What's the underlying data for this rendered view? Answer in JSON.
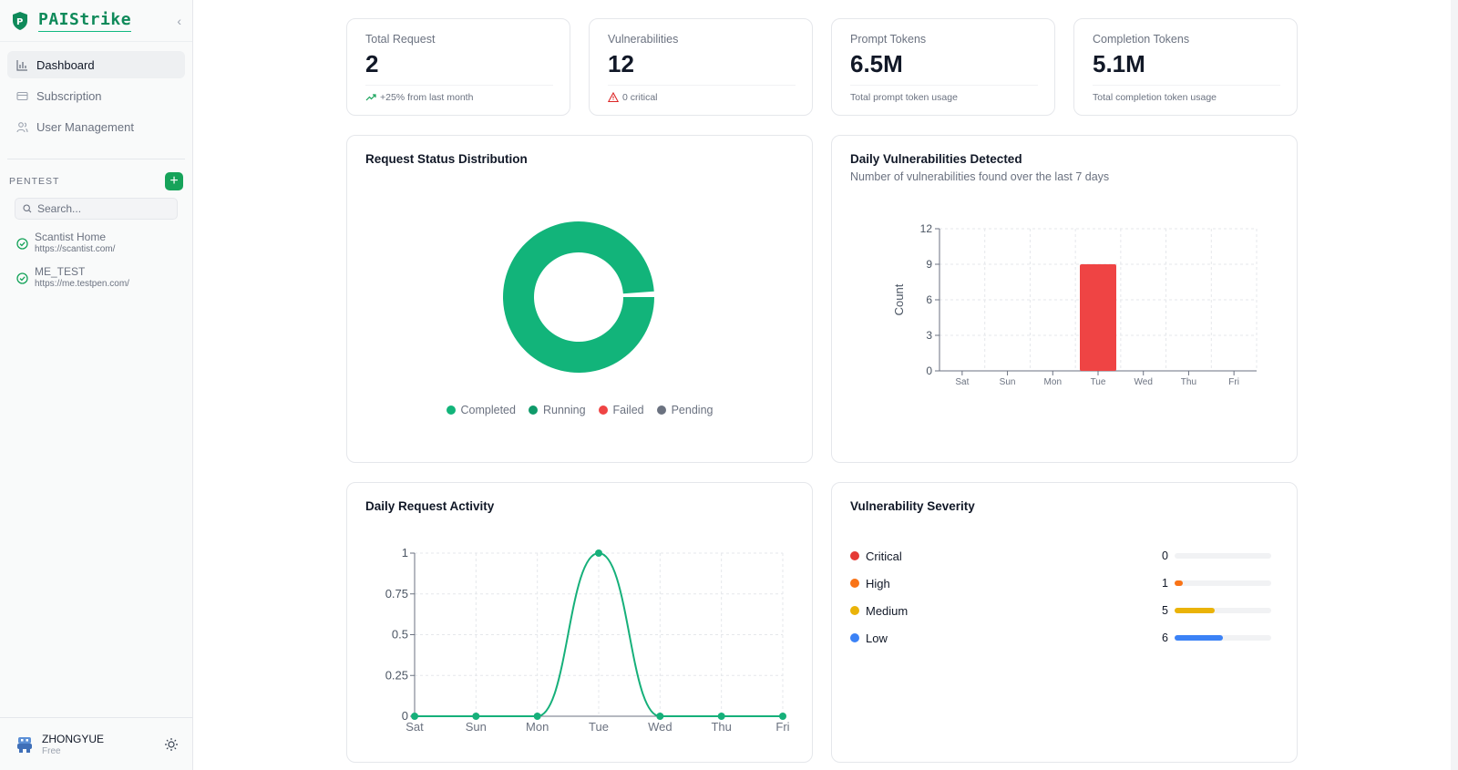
{
  "brand": {
    "name": "PAIStrike"
  },
  "nav": {
    "items": [
      {
        "label": "Dashboard",
        "active": true,
        "icon": "bar-chart-icon"
      },
      {
        "label": "Subscription",
        "active": false,
        "icon": "card-icon"
      },
      {
        "label": "User Management",
        "active": false,
        "icon": "users-icon"
      }
    ]
  },
  "pentest": {
    "section_label": "PENTEST",
    "search_placeholder": "Search...",
    "targets": [
      {
        "name": "Scantist Home",
        "url": "https://scantist.com/"
      },
      {
        "name": "ME_TEST",
        "url": "https://me.testpen.com/"
      }
    ]
  },
  "user": {
    "name": "ZHONGYUE",
    "plan": "Free"
  },
  "stats": [
    {
      "label": "Total Request",
      "value": "2",
      "note": "+25% from last month",
      "note_icon": "trending-up-icon"
    },
    {
      "label": "Vulnerabilities",
      "value": "12",
      "note": "0 critical",
      "note_icon": "warning-triangle-icon"
    },
    {
      "label": "Prompt Tokens",
      "value": "6.5M",
      "note": "Total prompt token usage"
    },
    {
      "label": "Completion Tokens",
      "value": "5.1M",
      "note": "Total completion token usage"
    }
  ],
  "colors": {
    "completed": "#12b47a",
    "running": "#0f9a6a",
    "failed": "#ef4444",
    "pending": "#6b7280",
    "critical": "#e53935",
    "high": "#f97316",
    "medium": "#eab308",
    "low": "#3b82f6",
    "bar": "#ef4444",
    "line": "#16b07a"
  },
  "request_status": {
    "title": "Request Status Distribution",
    "legend": [
      "Completed",
      "Running",
      "Failed",
      "Pending"
    ]
  },
  "daily_vulns": {
    "title": "Daily Vulnerabilities Detected",
    "subtitle": "Number of vulnerabilities found over the last 7 days"
  },
  "daily_requests": {
    "title": "Daily Request Activity"
  },
  "severity": {
    "title": "Vulnerability Severity",
    "max": 12,
    "items": [
      {
        "name": "Critical",
        "count": "0",
        "value": 0
      },
      {
        "name": "High",
        "count": "1",
        "value": 1
      },
      {
        "name": "Medium",
        "count": "5",
        "value": 5
      },
      {
        "name": "Low",
        "count": "6",
        "value": 6
      }
    ]
  },
  "chart_data": [
    {
      "type": "pie",
      "title": "Request Status Distribution",
      "categories": [
        "Completed",
        "Running",
        "Failed",
        "Pending"
      ],
      "values": [
        2,
        0,
        0,
        0
      ]
    },
    {
      "type": "bar",
      "title": "Daily Vulnerabilities Detected",
      "subtitle": "Number of vulnerabilities found over the last 7 days",
      "categories": [
        "Sat",
        "Sun",
        "Mon",
        "Tue",
        "Wed",
        "Thu",
        "Fri"
      ],
      "values": [
        0,
        0,
        0,
        9,
        0,
        0,
        0
      ],
      "xlabel": "",
      "ylabel": "Count",
      "ylim": [
        0,
        12
      ],
      "yticks": [
        "0",
        "3",
        "6",
        "9",
        "12"
      ]
    },
    {
      "type": "line",
      "title": "Daily Request Activity",
      "categories": [
        "Sat",
        "Sun",
        "Mon",
        "Tue",
        "Wed",
        "Thu",
        "Fri"
      ],
      "values": [
        0,
        0,
        0,
        1,
        0,
        0,
        0
      ],
      "xlabel": "",
      "ylabel": "",
      "ylim": [
        0,
        1
      ],
      "yticks": [
        "0",
        "0.25",
        "0.5",
        "0.75",
        "1"
      ]
    }
  ]
}
